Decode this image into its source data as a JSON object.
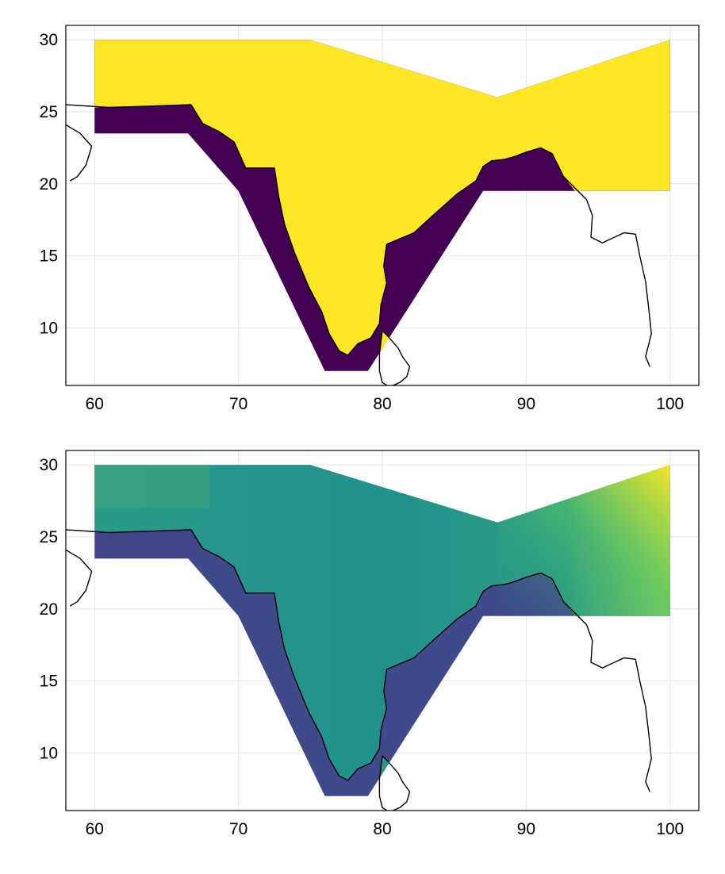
{
  "chart_data": [
    {
      "type": "map",
      "panel": "top",
      "fill": "binary land/sea mask (yellow = land, purple = sea) over a South Asia polygon domain",
      "x_ticks": [
        "60",
        "70",
        "80",
        "90",
        "100"
      ],
      "y_ticks": [
        "10",
        "15",
        "20",
        "25",
        "30"
      ],
      "xlim": [
        58,
        102
      ],
      "ylim": [
        6,
        31
      ],
      "grid": true,
      "colors": {
        "land": "#fde725",
        "sea": "#440154"
      }
    },
    {
      "type": "map",
      "panel": "bottom",
      "fill": "continuous field (viridis colormap) over the same polygon domain; lowest values offshore, highest in the northeast highlands",
      "x_ticks": [
        "60",
        "70",
        "80",
        "90",
        "100"
      ],
      "y_ticks": [
        "10",
        "15",
        "20",
        "25",
        "30"
      ],
      "xlim": [
        58,
        102
      ],
      "ylim": [
        6,
        31
      ],
      "grid": true,
      "colors": {
        "low": "#3b528b",
        "mid": "#21918c",
        "high": "#fde725"
      }
    }
  ],
  "domain_polygon": [
    [
      60,
      30
    ],
    [
      75,
      30
    ],
    [
      88,
      26
    ],
    [
      100,
      30
    ],
    [
      100,
      19.5
    ],
    [
      87,
      19.5
    ],
    [
      79,
      7
    ],
    [
      76,
      7
    ],
    [
      70,
      19.5
    ],
    [
      66.5,
      23.5
    ],
    [
      60,
      23.5
    ]
  ],
  "coastline": [
    [
      58,
      25.5
    ],
    [
      61,
      25.3
    ],
    [
      64,
      25.4
    ],
    [
      66.7,
      25.5
    ],
    [
      67.5,
      24.2
    ],
    [
      68.7,
      23.6
    ],
    [
      69.7,
      22.9
    ],
    [
      70.5,
      21.1
    ],
    [
      72.5,
      21.1
    ],
    [
      72.8,
      19.1
    ],
    [
      73.2,
      17.2
    ],
    [
      73.9,
      15.2
    ],
    [
      74.9,
      12.8
    ],
    [
      75.8,
      11.1
    ],
    [
      76.3,
      9.6
    ],
    [
      77.0,
      8.4
    ],
    [
      77.6,
      8.1
    ],
    [
      78.3,
      8.9
    ],
    [
      79.2,
      9.3
    ],
    [
      79.8,
      10.3
    ],
    [
      79.9,
      11.6
    ],
    [
      80.3,
      13.1
    ],
    [
      80.1,
      14.3
    ],
    [
      80.3,
      15.8
    ],
    [
      82.2,
      16.6
    ],
    [
      83.4,
      17.7
    ],
    [
      85.2,
      19.3
    ],
    [
      86.5,
      20.2
    ],
    [
      87.0,
      21.2
    ],
    [
      87.6,
      21.6
    ],
    [
      88.5,
      21.7
    ],
    [
      89.2,
      21.9
    ],
    [
      90.0,
      22.2
    ],
    [
      91.0,
      22.5
    ],
    [
      91.8,
      22.1
    ],
    [
      92.2,
      21.3
    ],
    [
      92.6,
      20.5
    ],
    [
      93.5,
      19.6
    ],
    [
      94.2,
      18.9
    ],
    [
      94.6,
      17.8
    ],
    [
      94.5,
      16.3
    ],
    [
      95.3,
      15.9
    ],
    [
      96.8,
      16.6
    ],
    [
      97.6,
      16.5
    ],
    [
      97.9,
      15.0
    ],
    [
      98.3,
      13.2
    ],
    [
      98.5,
      11.5
    ],
    [
      98.7,
      9.6
    ],
    [
      98.3,
      8.0
    ],
    [
      98.6,
      7.3
    ]
  ],
  "srilanka": [
    [
      80.0,
      9.8
    ],
    [
      80.4,
      9.4
    ],
    [
      81.1,
      8.6
    ],
    [
      81.4,
      8.0
    ],
    [
      81.9,
      7.3
    ],
    [
      81.7,
      6.6
    ],
    [
      81.2,
      6.2
    ],
    [
      80.5,
      5.9
    ],
    [
      80.0,
      6.2
    ],
    [
      79.8,
      7.0
    ],
    [
      79.8,
      8.2
    ],
    [
      79.9,
      9.0
    ]
  ],
  "africa_coast": [
    [
      58,
      24.1
    ],
    [
      59.0,
      23.5
    ],
    [
      59.8,
      22.6
    ],
    [
      59.4,
      21.3
    ],
    [
      58.8,
      20.5
    ],
    [
      58.3,
      20.2
    ]
  ]
}
